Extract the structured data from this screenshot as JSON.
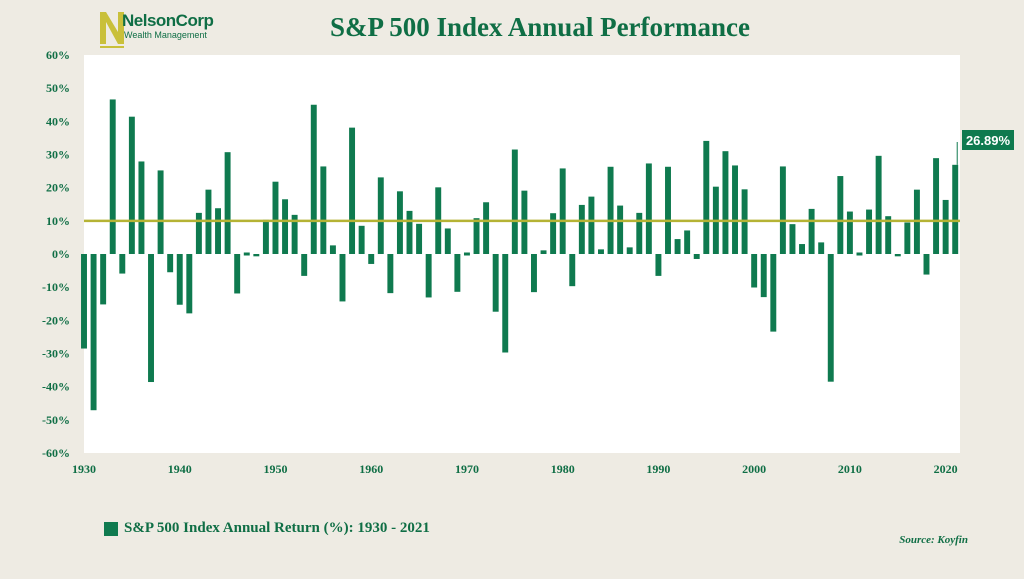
{
  "logo": {
    "name": "NelsonCorp",
    "sub": "Wealth Management"
  },
  "title": "S&P 500 Index Annual Performance",
  "legend_label": "S&P 500 Index Annual Return (%): 1930 - 2021",
  "source": {
    "label": "Source",
    "value": ": Koyfin"
  },
  "callout_label": "26.89%",
  "colors": {
    "bar": "#0f7a4f",
    "reference_line": "#b5b334",
    "text": "#0f6e45",
    "plot_bg": "#ffffff",
    "page_bg": "#eeebe3"
  },
  "chart_data": {
    "type": "bar",
    "title": "S&P 500 Index Annual Performance",
    "ylim": [
      -60,
      60
    ],
    "yticks": [
      60,
      50,
      40,
      30,
      20,
      10,
      0,
      -10,
      -20,
      -30,
      -40,
      -50,
      -60
    ],
    "ytick_labels": [
      "60%",
      "50%",
      "40%",
      "30%",
      "20%",
      "10%",
      "0%",
      "-10%",
      "-20%",
      "-30%",
      "-40%",
      "-50%",
      "-60%"
    ],
    "xlim": [
      1930,
      2021
    ],
    "xticks": [
      1930,
      1940,
      1950,
      1960,
      1970,
      1980,
      1990,
      2000,
      2010,
      2020
    ],
    "reference_line": 10,
    "callout": {
      "year": 2021,
      "value": 26.89
    },
    "series": [
      {
        "name": "S&P 500 Index Annual Return (%): 1930 - 2021",
        "x": [
          1930,
          1931,
          1932,
          1933,
          1934,
          1935,
          1936,
          1937,
          1938,
          1939,
          1940,
          1941,
          1942,
          1943,
          1944,
          1945,
          1946,
          1947,
          1948,
          1949,
          1950,
          1951,
          1952,
          1953,
          1954,
          1955,
          1956,
          1957,
          1958,
          1959,
          1960,
          1961,
          1962,
          1963,
          1964,
          1965,
          1966,
          1967,
          1968,
          1969,
          1970,
          1971,
          1972,
          1973,
          1974,
          1975,
          1976,
          1977,
          1978,
          1979,
          1980,
          1981,
          1982,
          1983,
          1984,
          1985,
          1986,
          1987,
          1988,
          1989,
          1990,
          1991,
          1992,
          1993,
          1994,
          1995,
          1996,
          1997,
          1998,
          1999,
          2000,
          2001,
          2002,
          2003,
          2004,
          2005,
          2006,
          2007,
          2008,
          2009,
          2010,
          2011,
          2012,
          2013,
          2014,
          2015,
          2016,
          2017,
          2018,
          2019,
          2020,
          2021
        ],
        "values": [
          -28.5,
          -47.1,
          -15.2,
          46.6,
          -5.9,
          41.4,
          27.9,
          -38.6,
          25.2,
          -5.5,
          -15.3,
          -17.9,
          12.4,
          19.4,
          13.8,
          30.7,
          -11.9,
          0,
          -0.7,
          10.3,
          21.8,
          16.5,
          11.8,
          -6.6,
          45.0,
          26.4,
          2.6,
          -14.3,
          38.1,
          8.5,
          -3.0,
          23.1,
          -11.8,
          18.9,
          13.0,
          9.1,
          -13.1,
          20.1,
          7.7,
          -11.4,
          0.1,
          10.8,
          15.6,
          -17.4,
          -29.7,
          31.5,
          19.1,
          -11.5,
          1.1,
          12.3,
          25.8,
          -9.7,
          14.8,
          17.3,
          1.4,
          26.3,
          14.6,
          2.0,
          12.4,
          27.3,
          -6.6,
          26.3,
          4.5,
          7.1,
          -1.5,
          34.1,
          20.3,
          31.0,
          26.7,
          19.5,
          -10.1,
          -13.0,
          -23.4,
          26.4,
          9.0,
          3.0,
          13.6,
          3.5,
          -38.5,
          23.5,
          12.8,
          0,
          13.4,
          29.6,
          11.4,
          -0.7,
          9.5,
          19.4,
          -6.2,
          28.9,
          16.3,
          26.89
        ]
      }
    ]
  }
}
